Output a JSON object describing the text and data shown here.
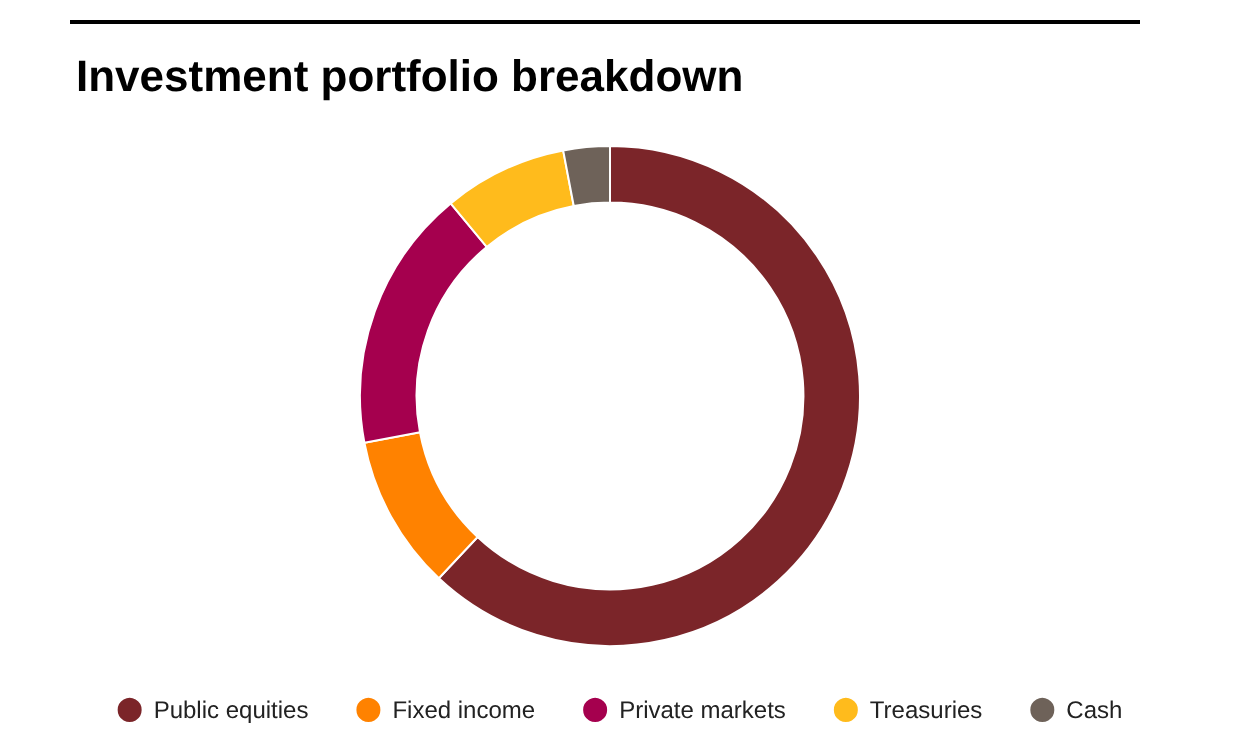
{
  "chart_data": {
    "type": "donut",
    "title": "Investment portfolio breakdown",
    "categories": [
      "Public equities",
      "Fixed income",
      "Private markets",
      "Treasuries",
      "Cash"
    ],
    "values": [
      62,
      10,
      17,
      8,
      3
    ],
    "colors": [
      "#7b2529",
      "#ff8200",
      "#a5004e",
      "#ffbb1c",
      "#6e6259"
    ],
    "legend": "bottom"
  }
}
